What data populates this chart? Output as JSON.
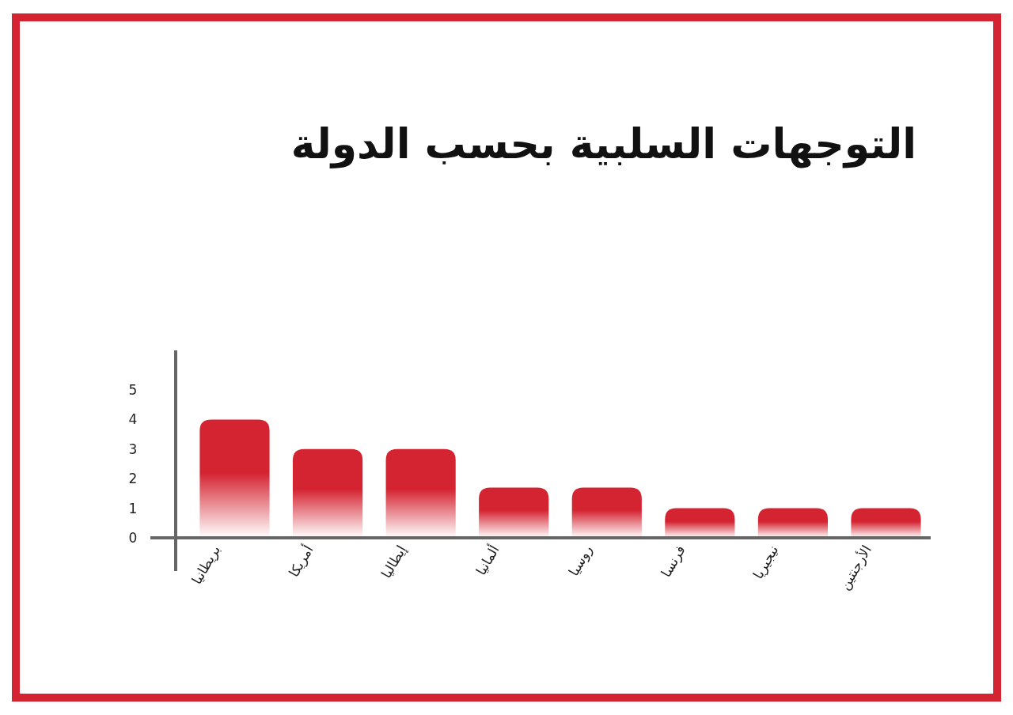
{
  "chart_data": {
    "type": "bar",
    "title": "التوجهات السلبية بحسب الدولة",
    "categories": [
      "بريطانيا",
      "أمريكا",
      "إيطاليا",
      "ألمانيا",
      "روسيا",
      "فرنسا",
      "نيجيريا",
      "الأرجنتين"
    ],
    "values": [
      4,
      3,
      3,
      1.7,
      1.7,
      1,
      1,
      1
    ],
    "color": "#d42331",
    "ylim": [
      0,
      5
    ],
    "yticks": [
      0,
      1,
      2,
      3,
      4,
      5
    ]
  }
}
